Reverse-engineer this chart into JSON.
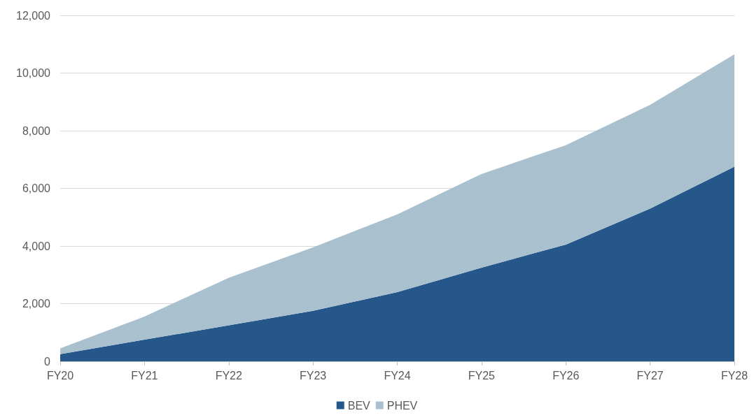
{
  "chart_data": {
    "type": "area",
    "stacked": true,
    "categories": [
      "FY20",
      "FY21",
      "FY22",
      "FY23",
      "FY24",
      "FY25",
      "FY26",
      "FY27",
      "FY28"
    ],
    "series": [
      {
        "name": "BEV",
        "color": "#26578b",
        "values": [
          250,
          750,
          1250,
          1750,
          2400,
          3250,
          4050,
          5300,
          6750
        ]
      },
      {
        "name": "PHEV",
        "color": "#a9c1ce",
        "values": [
          200,
          800,
          1650,
          2200,
          2700,
          3250,
          3450,
          3600,
          3900
        ]
      }
    ],
    "ylim": [
      0,
      12000
    ],
    "yticks": [
      0,
      {
        "value": 2000,
        "label": "2,000"
      },
      {
        "value": 4000,
        "label": "4,000"
      },
      {
        "value": 6000,
        "label": "6,000"
      },
      {
        "value": 8000,
        "label": "8,000"
      },
      {
        "value": 10000,
        "label": "10,000"
      },
      {
        "value": 12000,
        "label": "12,000"
      }
    ],
    "grid": "y",
    "legend": "bottom",
    "marker": "none"
  }
}
